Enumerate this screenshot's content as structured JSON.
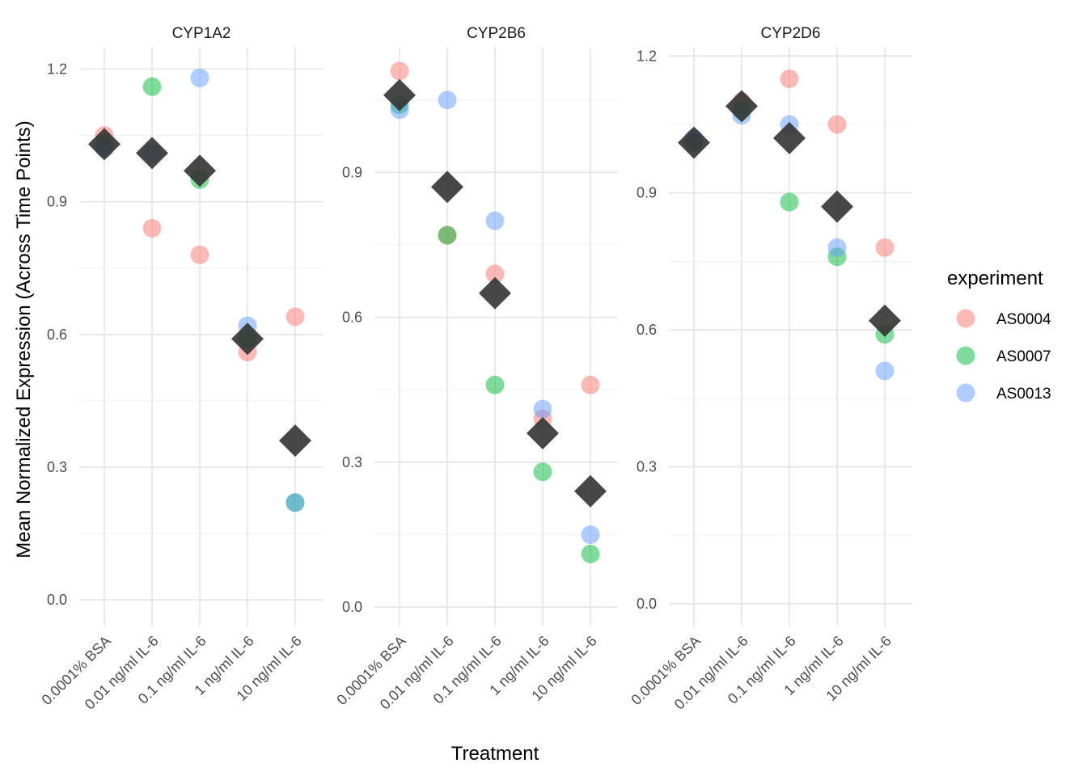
{
  "chart_data": {
    "type": "scatter",
    "xlabel": "Treatment",
    "ylabel": "Mean Normalized Expression (Across Time Points)",
    "categories": [
      "0.0001% BSA",
      "0.01 ng/ml IL-6",
      "0.1 ng/ml IL-6",
      "1 ng/ml IL-6",
      "10 ng/ml IL-6"
    ],
    "legend": {
      "title": "experiment",
      "position": "right",
      "entries": [
        {
          "name": "AS0004",
          "color": "#F8766D"
        },
        {
          "name": "AS0007",
          "color": "#00BA38"
        },
        {
          "name": "AS0013",
          "color": "#619CFF"
        }
      ]
    },
    "mean_marker_color": "#333333",
    "grid": true,
    "panels": [
      {
        "title": "CYP1A2",
        "ylim": [
          -0.06,
          1.25
        ],
        "yticks": [
          0.0,
          0.3,
          0.6,
          0.9,
          1.2
        ],
        "ytick_labels": [
          "0.0",
          "0.3",
          "0.6",
          "0.9",
          "1.2"
        ],
        "series": [
          {
            "name": "AS0004",
            "values": [
              1.05,
              0.84,
              0.78,
              0.56,
              0.64
            ]
          },
          {
            "name": "AS0007",
            "values": [
              1.03,
              1.16,
              0.95,
              0.59,
              0.22
            ]
          },
          {
            "name": "AS0013",
            "values": [
              1.02,
              1.01,
              1.18,
              0.62,
              0.22
            ]
          }
        ],
        "means": [
          1.03,
          1.01,
          0.97,
          0.59,
          0.36
        ]
      },
      {
        "title": "CYP2B6",
        "ylim": [
          -0.04,
          1.16
        ],
        "yticks": [
          0.0,
          0.3,
          0.6,
          0.9
        ],
        "ytick_labels": [
          "0.0",
          "0.3",
          "0.6",
          "0.9"
        ],
        "series": [
          {
            "name": "AS0004",
            "values": [
              1.11,
              0.77,
              0.69,
              0.39,
              0.46
            ]
          },
          {
            "name": "AS0007",
            "values": [
              1.04,
              0.77,
              0.46,
              0.28,
              0.11
            ]
          },
          {
            "name": "AS0013",
            "values": [
              1.03,
              1.05,
              0.8,
              0.41,
              0.15
            ]
          }
        ],
        "means": [
          1.06,
          0.87,
          0.65,
          0.36,
          0.24
        ]
      },
      {
        "title": "CYP2D6",
        "ylim": [
          -0.05,
          1.22
        ],
        "yticks": [
          0.0,
          0.3,
          0.6,
          0.9,
          1.2
        ],
        "ytick_labels": [
          "0.0",
          "0.3",
          "0.6",
          "0.9",
          "1.2"
        ],
        "series": [
          {
            "name": "AS0004",
            "values": [
              1.01,
              1.1,
              1.15,
              1.05,
              0.78
            ]
          },
          {
            "name": "AS0007",
            "values": [
              1.01,
              1.08,
              0.88,
              0.76,
              0.59
            ]
          },
          {
            "name": "AS0013",
            "values": [
              1.02,
              1.07,
              1.05,
              0.78,
              0.51
            ]
          }
        ],
        "means": [
          1.01,
          1.09,
          1.02,
          0.87,
          0.62
        ]
      }
    ]
  }
}
